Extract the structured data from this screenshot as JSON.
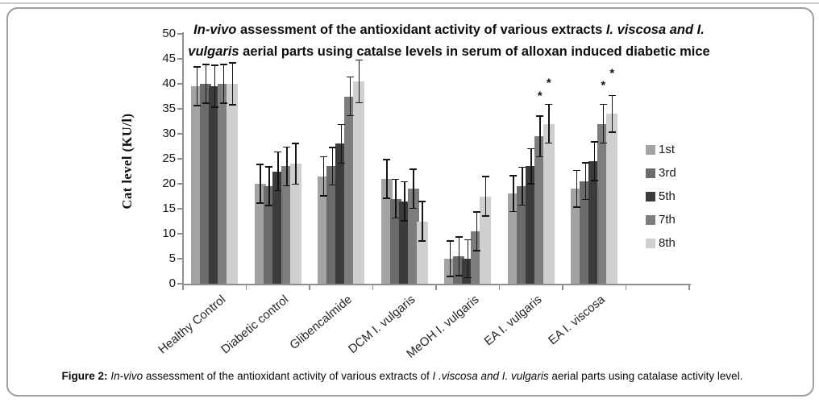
{
  "figure": {
    "caption_segments": [
      {
        "text": "Figure 2: ",
        "bold": true
      },
      {
        "text": "In-vivo ",
        "italic": true
      },
      {
        "text": "assessment of the antioxidant activity of various extracts of "
      },
      {
        "text": "I .viscosa and I. vulgaris ",
        "italic": true
      },
      {
        "text": "aerial parts using catalase activity level."
      }
    ]
  },
  "chart_data": {
    "type": "bar",
    "title_segments": [
      {
        "text": "In-vivo ",
        "italic": true
      },
      {
        "text": "assessment of the antioxidant activity of various extracts "
      },
      {
        "text": "I. viscosa and I. vulgaris ",
        "italic": true
      },
      {
        "text": "aerial parts using catalse levels in serum of alloxan induced diabetic mice"
      }
    ],
    "ylabel": "Cat level (KU/l)",
    "xlabel": "",
    "ylim": [
      0,
      50
    ],
    "ytick_step": 5,
    "grid": false,
    "legend_position": "right",
    "categories": [
      "Healthy Control",
      "Diabetic control",
      "Glibencalmide",
      "DCM I. vulgaris",
      "MeOH I. vulgaris",
      "EA I. vulgaris",
      "EA I. viscosa"
    ],
    "series": [
      {
        "name": "1st",
        "color": "#a3a3a3",
        "values": [
          39.5,
          20,
          21.5,
          21,
          5,
          18,
          19
        ],
        "errors": [
          4,
          4,
          4,
          4,
          3.7,
          3.7,
          3.8
        ]
      },
      {
        "name": "3rd",
        "color": "#6b6b6b",
        "values": [
          40,
          19.5,
          23.5,
          17,
          5.5,
          19.5,
          20.5
        ],
        "errors": [
          4,
          4,
          3.9,
          4,
          4,
          3.9,
          3.8
        ]
      },
      {
        "name": "5th",
        "color": "#3b3b3b",
        "values": [
          39.5,
          22.5,
          28,
          16.5,
          5,
          23.5,
          24.5
        ],
        "errors": [
          4.3,
          4,
          4,
          4,
          3.9,
          3.6,
          4
        ]
      },
      {
        "name": "7th",
        "color": "#7d7d7d",
        "values": [
          40,
          23.5,
          37.5,
          19,
          10.5,
          29.5,
          32
        ],
        "errors": [
          4,
          4,
          4,
          4,
          4,
          4.2,
          4
        ]
      },
      {
        "name": "8th",
        "color": "#cfcfcf",
        "values": [
          40,
          24,
          40.5,
          12.5,
          17.5,
          32,
          34
        ],
        "errors": [
          4.3,
          4.2,
          4.4,
          4.1,
          4.1,
          4,
          3.8
        ]
      }
    ],
    "significance_markers": [
      {
        "category_index": 5,
        "series_index": 3,
        "symbol": "*",
        "value": 37.5
      },
      {
        "category_index": 5,
        "series_index": 4,
        "symbol": "*",
        "value": 40
      },
      {
        "category_index": 6,
        "series_index": 3,
        "symbol": "*",
        "value": 39.5
      },
      {
        "category_index": 6,
        "series_index": 4,
        "symbol": "*",
        "value": 42
      }
    ]
  }
}
